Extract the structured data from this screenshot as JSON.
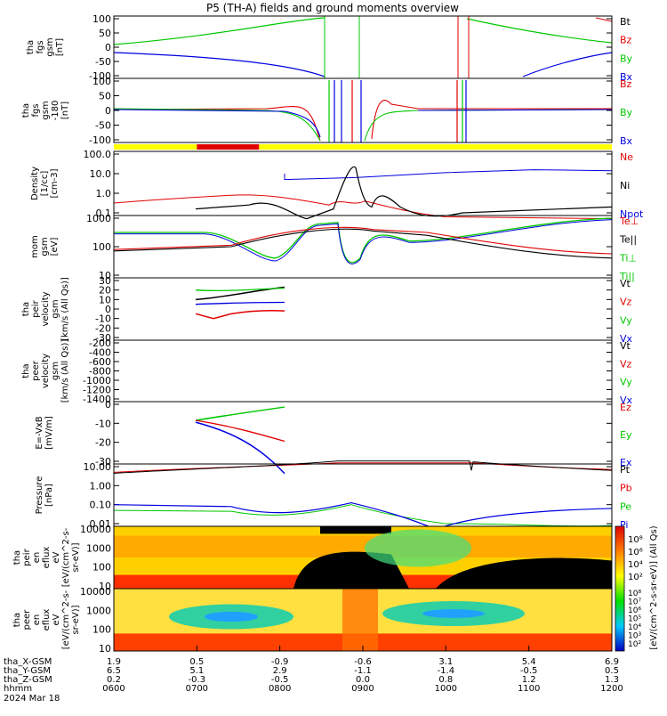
{
  "title": "P5 (TH-A) fields and ground moments overview",
  "colors": {
    "black": "#000000",
    "red": "#e00000",
    "green": "#00c800",
    "blue": "#0000e0",
    "yellow": "#ffff00"
  },
  "status_bar": {
    "segments": [
      {
        "t0": "0600",
        "t1": "0700",
        "color": "yellow"
      },
      {
        "t0": "0700",
        "t1": "0745",
        "color": "red"
      },
      {
        "t0": "0745",
        "t1": "1200",
        "color": "yellow"
      }
    ]
  },
  "chart_data": [
    {
      "id": "p1",
      "type": "line",
      "ylabel": [
        "tha",
        "fgs",
        "gsm",
        "[nT]"
      ],
      "ylim": [
        -100,
        100
      ],
      "yticks": [
        "100",
        "50",
        "0",
        "-50",
        "-100"
      ],
      "legend": [
        {
          "label": "Bt",
          "color": "black"
        },
        {
          "label": "Bz",
          "color": "red"
        },
        {
          "label": "By",
          "color": "green"
        },
        {
          "label": "Bx",
          "color": "blue"
        }
      ]
    },
    {
      "id": "p2",
      "type": "line",
      "ylabel": [
        "tha",
        "fgs",
        "gsm",
        "-180",
        "[nT]"
      ],
      "ylim": [
        -120,
        120
      ],
      "yticks": [
        "100",
        "50",
        "0",
        "-50",
        "-100"
      ],
      "legend": [
        {
          "label": "Bz",
          "color": "red"
        },
        {
          "label": "By",
          "color": "green"
        },
        {
          "label": "Bx",
          "color": "blue"
        }
      ]
    },
    {
      "id": "p3",
      "type": "line",
      "scale": "log",
      "ylabel": [
        "Density",
        "[1/cc]",
        "[cm-3]"
      ],
      "yticks": [
        "100.0",
        "10.0",
        "1.0",
        "0.1"
      ],
      "legend": [
        {
          "label": "Ne",
          "color": "red"
        },
        {
          "label": "Ni",
          "color": "black"
        },
        {
          "label": "Npot",
          "color": "blue"
        }
      ]
    },
    {
      "id": "p4",
      "type": "line",
      "scale": "log",
      "ylabel": [
        "mom",
        "gsm",
        "[eV]"
      ],
      "yticks": [
        "1000",
        "100",
        "10"
      ],
      "legend": [
        {
          "label": "Te⊥",
          "color": "red"
        },
        {
          "label": "Te||",
          "color": "black"
        },
        {
          "label": "Ti⊥",
          "color": "green"
        },
        {
          "label": "Ti||",
          "color": "green"
        }
      ]
    },
    {
      "id": "p5",
      "type": "line",
      "ylabel": [
        "tha",
        "peir",
        "velocity",
        "gsm",
        "[km/s (All Qs)]"
      ],
      "yticks": [
        "30",
        "20",
        "10",
        "0",
        "-10",
        "-20",
        "-30"
      ],
      "legend": [
        {
          "label": "Vt",
          "color": "black"
        },
        {
          "label": "Vz",
          "color": "red"
        },
        {
          "label": "Vy",
          "color": "green"
        },
        {
          "label": "Vx",
          "color": "blue"
        }
      ]
    },
    {
      "id": "p6",
      "type": "line",
      "ylabel": [
        "tha",
        "peer",
        "velocity",
        "gsm",
        "[km/s (All Qs)]"
      ],
      "yticks": [
        "-200",
        "-400",
        "-600",
        "-800",
        "-1000",
        "-1200",
        "-1400"
      ],
      "legend": [
        {
          "label": "Vt",
          "color": "black"
        },
        {
          "label": "Vz",
          "color": "red"
        },
        {
          "label": "Vy",
          "color": "green"
        },
        {
          "label": "Vx",
          "color": "blue"
        }
      ]
    },
    {
      "id": "p7",
      "type": "line",
      "ylabel": [
        "E=-VxB",
        "[mV/m]"
      ],
      "yticks": [
        "0",
        "-10",
        "-20",
        "-30"
      ],
      "legend": [
        {
          "label": "Ez",
          "color": "red"
        },
        {
          "label": "Ey",
          "color": "green"
        },
        {
          "label": "Ex",
          "color": "blue"
        }
      ]
    },
    {
      "id": "p8",
      "type": "line",
      "scale": "log",
      "ylabel": [
        "Pressure",
        "[nPa]"
      ],
      "yticks": [
        "10.00",
        "1.00",
        "0.10",
        "0.01"
      ],
      "legend": [
        {
          "label": "Pt",
          "color": "black"
        },
        {
          "label": "Pb",
          "color": "red"
        },
        {
          "label": "Pe",
          "color": "green"
        },
        {
          "label": "Pi",
          "color": "blue"
        }
      ]
    },
    {
      "id": "p9",
      "type": "heatmap",
      "ylabel": [
        "tha",
        "peir",
        "en",
        "eflux",
        "eV",
        "[eV/(cm^2-s-",
        "sr-eV)]"
      ],
      "yticks": [
        "10000",
        "1000",
        "100",
        "10"
      ]
    },
    {
      "id": "p10",
      "type": "heatmap",
      "ylabel": [
        "tha",
        "peer",
        "en",
        "eflux",
        "eV",
        "[eV/(cm^2-s-",
        "sr-eV)]"
      ],
      "yticks": [
        "10000",
        "1000",
        "100",
        "10"
      ]
    }
  ],
  "colorbar": {
    "label": "[eV/(cm^2-s-sr-eV)] (All Qs)",
    "ticks_top": [
      "10⁸",
      "10⁶",
      "10⁴",
      "10²"
    ],
    "ticks_bottom": [
      "10⁸",
      "10⁷",
      "10⁶",
      "10⁵",
      "10⁴",
      "10³",
      "10²"
    ]
  },
  "x_axis": {
    "rows": [
      {
        "label": "tha_X-GSM",
        "values": [
          "1.9",
          "0.5",
          "-0.9",
          "-0.6",
          "3.1",
          "5.4",
          "6.9"
        ]
      },
      {
        "label": "tha_Y-GSM",
        "values": [
          "6.5",
          "5.1",
          "2.9",
          "-1.1",
          "-1.4",
          "-0.5",
          "0.5"
        ]
      },
      {
        "label": "tha_Z-GSM",
        "values": [
          "0.2",
          "-0.3",
          "-0.5",
          "0.0",
          "0.8",
          "1.2",
          "1.3"
        ]
      },
      {
        "label": "hhmm",
        "values": [
          "0600",
          "0700",
          "0800",
          "0900",
          "1000",
          "1100",
          "1200"
        ]
      }
    ],
    "date": "2024 Mar 18"
  }
}
